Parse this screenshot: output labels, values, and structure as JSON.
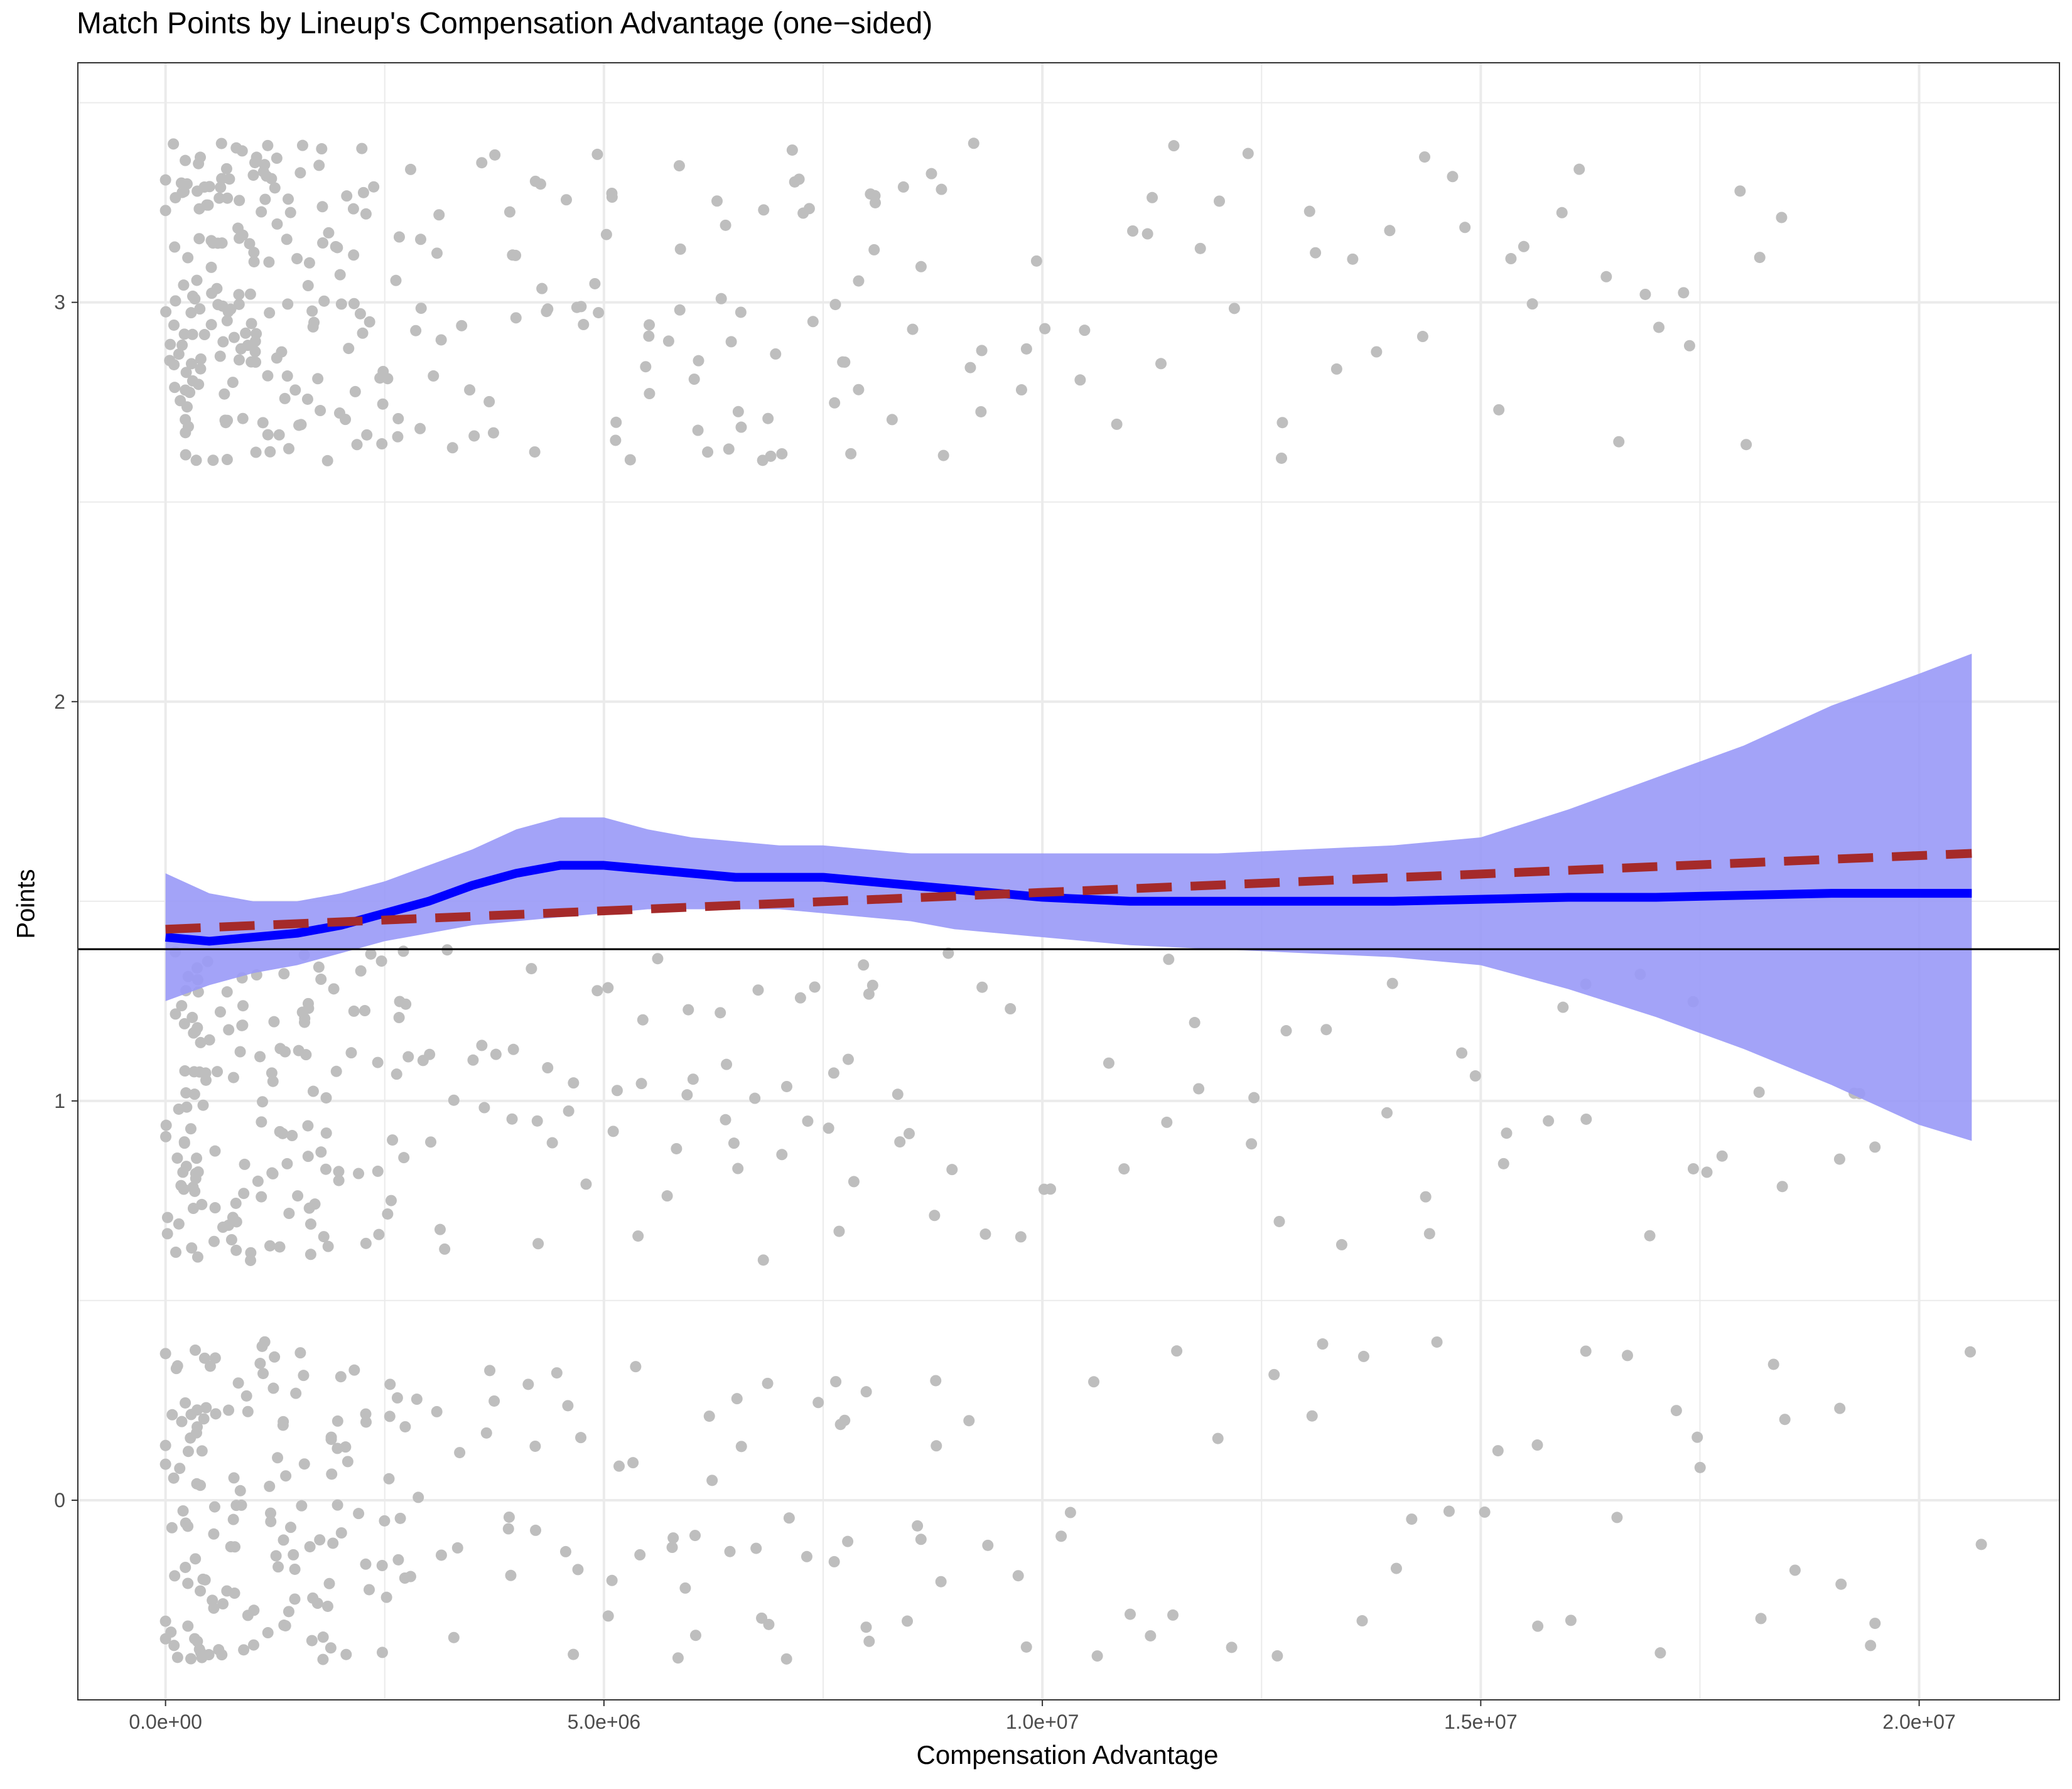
{
  "chart_data": {
    "type": "scatter",
    "title": "Match Points by Lineup's Compensation Advantage (one−sided)",
    "xlabel": "Compensation Advantage",
    "ylabel": "Points",
    "xlim": [
      -1000000,
      21600000
    ],
    "ylim": [
      -0.5,
      3.6
    ],
    "x_ticks": [
      {
        "value": 0,
        "label": "0.0e+00"
      },
      {
        "value": 5000000,
        "label": "5.0e+06"
      },
      {
        "value": 10000000,
        "label": "1.0e+07"
      },
      {
        "value": 15000000,
        "label": "1.5e+07"
      },
      {
        "value": 20000000,
        "label": "2.0e+07"
      }
    ],
    "y_ticks": [
      {
        "value": 0,
        "label": "0"
      },
      {
        "value": 1,
        "label": "1"
      },
      {
        "value": 2,
        "label": "2"
      },
      {
        "value": 3,
        "label": "3"
      }
    ],
    "grid": true,
    "legend": "none",
    "colors": {
      "points": "#bebebe",
      "loess_line": "#0000ff",
      "confidence_band": "#9999f7",
      "linear_fit": "#a52a2a",
      "reference_line": "#000000",
      "grid": "#ebebeb"
    },
    "jitter_height": 0.4,
    "point_groups": [
      {
        "points_value": 3,
        "x_values": [
          50000,
          80000,
          120000,
          150000,
          200000,
          250000,
          300000,
          350000,
          400000,
          450000,
          500000,
          550000,
          600000,
          650000,
          700000,
          750000,
          800000,
          850000,
          900000,
          950000,
          1000000,
          1050000,
          1100000,
          1150000,
          1200000,
          1300000,
          1400000,
          1500000,
          1600000,
          1700000,
          1800000,
          1900000,
          2000000,
          2100000,
          2200000,
          2400000,
          2600000,
          2800000,
          3000000,
          3200000,
          3400000,
          3600000,
          3800000,
          4000000,
          4200000,
          4400000,
          4600000,
          4800000,
          5000000,
          5200000,
          5400000,
          5600000,
          5800000,
          6000000,
          6200000,
          6400000,
          6600000,
          6800000,
          7000000,
          7200000,
          7400000,
          7600000,
          7800000,
          8000000,
          8200000,
          8500000,
          8800000,
          9100000,
          9400000,
          9700000,
          10000000,
          10500000,
          10900000,
          11200000,
          11500000,
          11900000,
          12200000,
          12600000,
          13000000,
          13400000,
          13900000,
          14300000,
          14700000,
          15200000,
          15600000,
          16000000,
          16500000,
          17000000,
          17400000,
          17900000,
          18300000
        ]
      },
      {
        "points_value": 1,
        "x_values": [
          50000,
          100000,
          150000,
          200000,
          250000,
          300000,
          350000,
          400000,
          450000,
          500000,
          600000,
          700000,
          800000,
          900000,
          1000000,
          1100000,
          1200000,
          1300000,
          1400000,
          1500000,
          1600000,
          1700000,
          1800000,
          1900000,
          2000000,
          2200000,
          2400000,
          2600000,
          2800000,
          3000000,
          3300000,
          3600000,
          3900000,
          4200000,
          4500000,
          4800000,
          5100000,
          5400000,
          5700000,
          6000000,
          6300000,
          6600000,
          6900000,
          7200000,
          7500000,
          7800000,
          8100000,
          8500000,
          8900000,
          9300000,
          9700000,
          10100000,
          10800000,
          11300000,
          11800000,
          12300000,
          12800000,
          13300000,
          13900000,
          14400000,
          14800000,
          15300000,
          15800000,
          16300000,
          16800000,
          17300000,
          17700000,
          18300000,
          19200000,
          19400000
        ]
      },
      {
        "points_value": 0,
        "x_values": [
          50000,
          100000,
          150000,
          200000,
          250000,
          300000,
          350000,
          400000,
          450000,
          500000,
          600000,
          700000,
          800000,
          900000,
          1000000,
          1100000,
          1200000,
          1300000,
          1400000,
          1500000,
          1600000,
          1700000,
          1800000,
          1900000,
          2000000,
          2200000,
          2400000,
          2600000,
          2800000,
          3000000,
          3300000,
          3600000,
          3900000,
          4200000,
          4500000,
          4800000,
          5100000,
          5400000,
          5700000,
          6000000,
          6300000,
          6600000,
          6900000,
          7200000,
          7500000,
          7800000,
          8100000,
          8500000,
          8900000,
          9300000,
          9700000,
          10200000,
          10600000,
          11100000,
          11600000,
          12100000,
          12600000,
          13100000,
          13600000,
          14100000,
          14600000,
          15100000,
          15600000,
          16100000,
          16600000,
          17100000,
          17600000,
          18200000,
          18600000,
          19200000,
          19400000,
          20600000
        ]
      }
    ],
    "series": [
      {
        "kind": "loess",
        "x": [
          0,
          500000,
          1000000,
          1500000,
          2000000,
          2500000,
          3000000,
          3500000,
          4000000,
          4500000,
          5000000,
          5500000,
          6000000,
          6500000,
          7000000,
          7500000,
          8000000,
          8500000,
          9000000,
          9500000,
          10000000,
          10500000,
          11000000,
          11500000,
          12000000,
          13000000,
          14000000,
          15000000,
          16000000,
          17000000,
          18000000,
          19000000,
          20000000,
          20600000
        ],
        "y": [
          1.41,
          1.4,
          1.41,
          1.42,
          1.44,
          1.47,
          1.5,
          1.54,
          1.57,
          1.59,
          1.59,
          1.58,
          1.57,
          1.56,
          1.56,
          1.56,
          1.55,
          1.54,
          1.53,
          1.52,
          1.51,
          1.505,
          1.5,
          1.5,
          1.5,
          1.5,
          1.5,
          1.505,
          1.51,
          1.51,
          1.515,
          1.52,
          1.52,
          1.52
        ],
        "ci_low": [
          1.25,
          1.29,
          1.32,
          1.34,
          1.37,
          1.4,
          1.42,
          1.44,
          1.45,
          1.46,
          1.47,
          1.48,
          1.48,
          1.48,
          1.48,
          1.47,
          1.46,
          1.45,
          1.43,
          1.42,
          1.41,
          1.4,
          1.39,
          1.385,
          1.38,
          1.37,
          1.36,
          1.34,
          1.28,
          1.21,
          1.13,
          1.04,
          0.94,
          0.9
        ],
        "ci_high": [
          1.57,
          1.52,
          1.5,
          1.5,
          1.52,
          1.55,
          1.59,
          1.63,
          1.68,
          1.71,
          1.71,
          1.68,
          1.66,
          1.65,
          1.64,
          1.64,
          1.63,
          1.62,
          1.62,
          1.62,
          1.62,
          1.62,
          1.62,
          1.62,
          1.62,
          1.63,
          1.64,
          1.66,
          1.73,
          1.81,
          1.89,
          1.99,
          2.07,
          2.12
        ]
      },
      {
        "kind": "linear",
        "x": [
          0,
          20600000
        ],
        "y": [
          1.43,
          1.62
        ]
      },
      {
        "kind": "reference_hline",
        "y": 1.38
      }
    ]
  }
}
